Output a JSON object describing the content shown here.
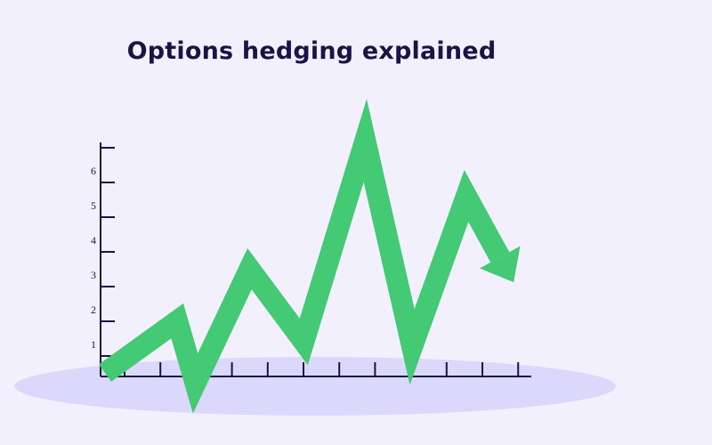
{
  "title": "Options hedging explained",
  "chart_data": {
    "type": "line",
    "title": "Options hedging explained",
    "xlabel": "",
    "ylabel": "",
    "y_tick_labels": [
      "1",
      "2",
      "3",
      "4",
      "5",
      "6"
    ],
    "ylim": [
      0,
      6.7
    ],
    "x": [
      0,
      2,
      2.5,
      4,
      5.5,
      7.2,
      8.5,
      10,
      11
    ],
    "values": [
      0.1,
      1.6,
      -0.2,
      3.1,
      1.0,
      6.8,
      0.85,
      5.2,
      3.3
    ],
    "end_marker": "arrow",
    "grid": false,
    "colors": {
      "line": "#44c975",
      "axis": "#1a1446",
      "ground": "#dcd8fb",
      "background": "#f3f0fd"
    }
  }
}
